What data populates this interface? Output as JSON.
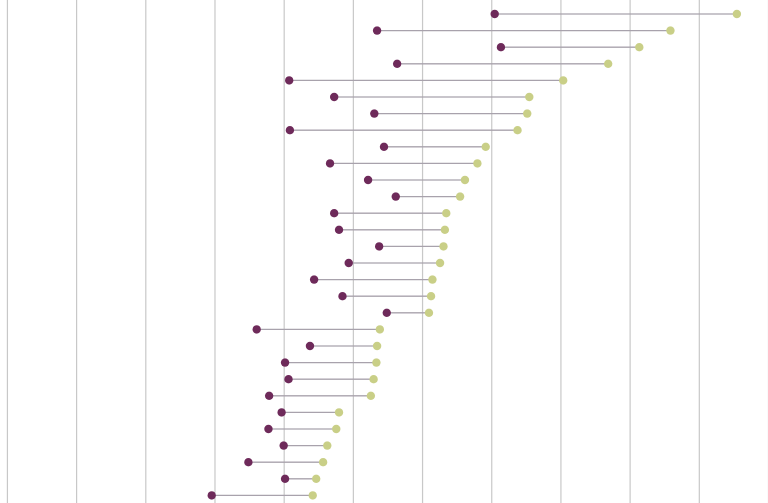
{
  "chart_data": {
    "type": "dumbbell",
    "xlim": [
      -0.1,
      11.0
    ],
    "grid": true,
    "colors": {
      "start": "#6e2a5a",
      "end": "#c9cf87",
      "connector": "#a8a2ac",
      "grid": "#c8c8c8"
    },
    "rows": [
      {
        "start": 7.05,
        "end": 10.55
      },
      {
        "start": 5.35,
        "end": 9.59
      },
      {
        "start": 7.14,
        "end": 9.14
      },
      {
        "start": 5.64,
        "end": 8.69
      },
      {
        "start": 4.08,
        "end": 8.04
      },
      {
        "start": 4.73,
        "end": 7.55
      },
      {
        "start": 5.31,
        "end": 7.52
      },
      {
        "start": 4.09,
        "end": 7.38
      },
      {
        "start": 5.45,
        "end": 6.92
      },
      {
        "start": 4.67,
        "end": 6.8
      },
      {
        "start": 5.22,
        "end": 6.62
      },
      {
        "start": 5.62,
        "end": 6.55
      },
      {
        "start": 4.73,
        "end": 6.35
      },
      {
        "start": 4.8,
        "end": 6.33
      },
      {
        "start": 5.38,
        "end": 6.31
      },
      {
        "start": 4.94,
        "end": 6.26
      },
      {
        "start": 4.44,
        "end": 6.15
      },
      {
        "start": 4.85,
        "end": 6.13
      },
      {
        "start": 5.49,
        "end": 6.1
      },
      {
        "start": 3.61,
        "end": 5.39
      },
      {
        "start": 4.38,
        "end": 5.35
      },
      {
        "start": 4.02,
        "end": 5.34
      },
      {
        "start": 4.07,
        "end": 5.3
      },
      {
        "start": 3.79,
        "end": 5.26
      },
      {
        "start": 3.97,
        "end": 4.8
      },
      {
        "start": 3.78,
        "end": 4.76
      },
      {
        "start": 4.0,
        "end": 4.63
      },
      {
        "start": 3.49,
        "end": 4.57
      },
      {
        "start": 4.02,
        "end": 4.47
      },
      {
        "start": 2.96,
        "end": 4.42
      }
    ]
  }
}
